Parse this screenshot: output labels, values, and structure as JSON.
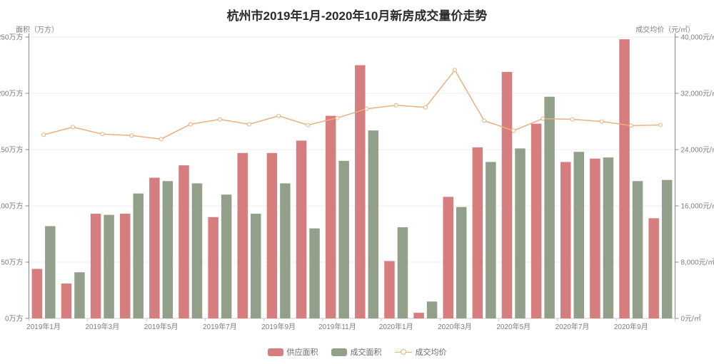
{
  "title": "杭州市2019年1月-2020年10月新房成交量价走势",
  "colors": {
    "supply": "#d67d7e",
    "deal": "#92a089",
    "price_line": "#ebaf81",
    "grid": "#ececec",
    "axis_y": "#888888",
    "axis_x": "#cccccc",
    "tick_label": "#7d7d7d",
    "title_color": "#2b2b2b"
  },
  "left_axis": {
    "name": "面积（万方）",
    "min": 0,
    "max": 250,
    "tick_labels": [
      "0万方",
      "50万方",
      "100万方",
      "150万方",
      "200万方",
      "250万方"
    ]
  },
  "right_axis": {
    "name": "成交均价（元/㎡）",
    "min": 0,
    "max": 40000,
    "tick_labels": [
      "0元/㎡",
      "8,000元/㎡",
      "16,000元/㎡",
      "24,000元/㎡",
      "32,000元/㎡",
      "40,000元/㎡"
    ]
  },
  "legend": {
    "items": [
      {
        "label": "供应面积",
        "type": "bar",
        "color_key": "supply"
      },
      {
        "label": "成交面积",
        "type": "bar",
        "color_key": "deal"
      },
      {
        "label": "成交均价",
        "type": "line",
        "color_key": "price_line"
      }
    ]
  },
  "chart_data": {
    "type": "bar+line",
    "title": "杭州市2019年1月-2020年10月新房成交量价走势",
    "categories": [
      "2019年1月",
      "2019年2月",
      "2019年3月",
      "2019年4月",
      "2019年5月",
      "2019年6月",
      "2019年7月",
      "2019年8月",
      "2019年9月",
      "2019年10月",
      "2019年11月",
      "2019年12月",
      "2020年1月",
      "2020年2月",
      "2020年3月",
      "2020年4月",
      "2020年5月",
      "2020年6月",
      "2020年7月",
      "2020年8月",
      "2020年9月",
      "2020年10月"
    ],
    "x_label_interval": 2,
    "grid": true,
    "legend_position": "bottom",
    "series": [
      {
        "name": "供应面积",
        "type": "bar",
        "axis": "left",
        "unit": "万方",
        "values": [
          44,
          31,
          93,
          93,
          125,
          136,
          90,
          147,
          147,
          158,
          180,
          225,
          51,
          5,
          108,
          152,
          219,
          173,
          139,
          142,
          248,
          89
        ]
      },
      {
        "name": "成交面积",
        "type": "bar",
        "axis": "left",
        "unit": "万方",
        "values": [
          82,
          41,
          92,
          111,
          122,
          120,
          110,
          93,
          120,
          80,
          140,
          167,
          81,
          15,
          99,
          139,
          151,
          197,
          148,
          143,
          122,
          123
        ]
      },
      {
        "name": "成交均价",
        "type": "line",
        "axis": "right",
        "unit": "元/㎡",
        "values": [
          26100,
          27200,
          26200,
          26000,
          25500,
          27600,
          28300,
          27600,
          28800,
          27500,
          28500,
          29800,
          30300,
          30000,
          35300,
          28100,
          26700,
          28400,
          28300,
          28000,
          27400,
          27500
        ]
      }
    ],
    "left_ylim": [
      0,
      250
    ],
    "right_ylim": [
      0,
      40000
    ]
  }
}
